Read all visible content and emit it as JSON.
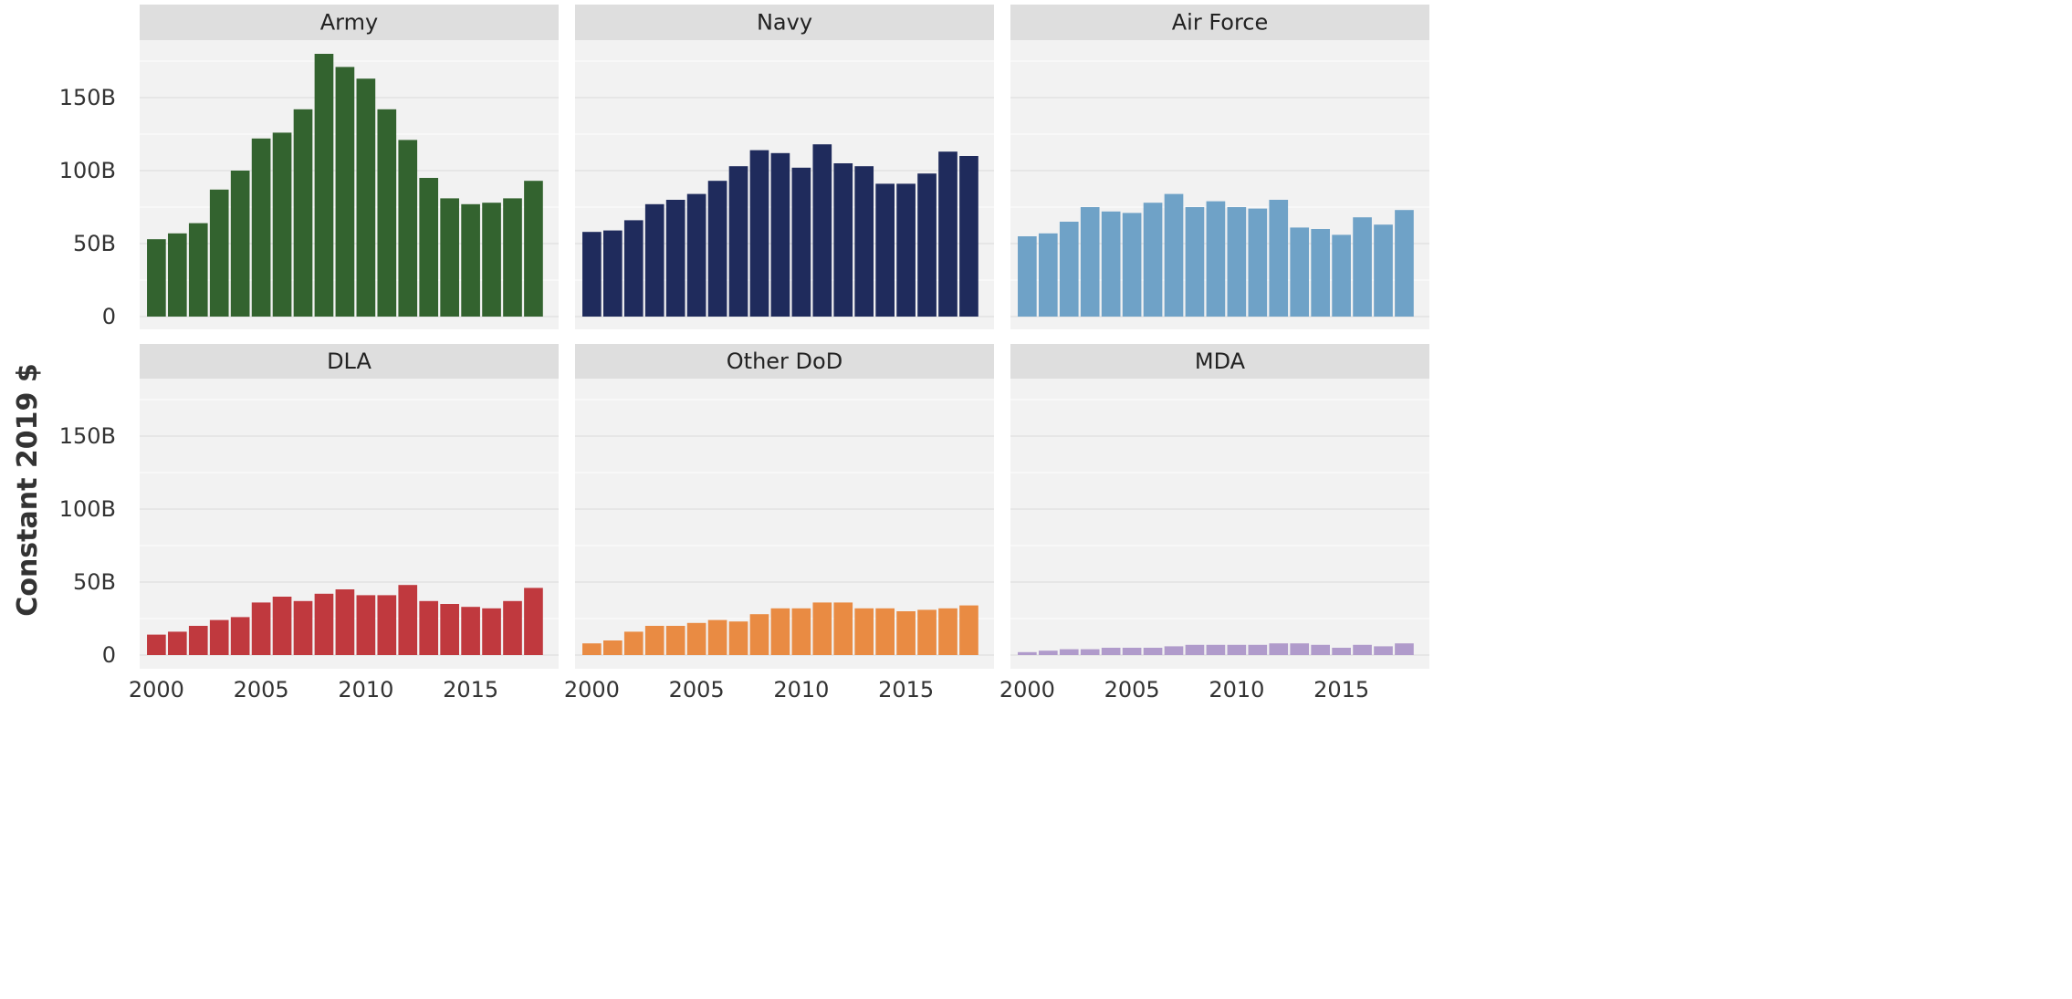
{
  "chart_data": {
    "type": "bar",
    "title": "",
    "xlabel": "",
    "ylabel": "Constant 2019 $",
    "x": [
      2000,
      2001,
      2002,
      2003,
      2004,
      2005,
      2006,
      2007,
      2008,
      2009,
      2010,
      2011,
      2012,
      2013,
      2014,
      2015,
      2016,
      2017,
      2018
    ],
    "xlim": [
      1999.2,
      2019.2
    ],
    "x_ticks": [
      2000,
      2005,
      2010,
      2015
    ],
    "x_tick_labels": [
      "2000",
      "2005",
      "2010",
      "2015"
    ],
    "ylim": [
      0,
      190
    ],
    "y_ticks": [
      0,
      50,
      100,
      150
    ],
    "y_tick_labels": [
      "0",
      "50B",
      "100B",
      "150B"
    ],
    "y_unit": "billions of constant 2019 dollars",
    "grid": true,
    "facets": [
      {
        "name": "Army",
        "color": "#33632f",
        "values": [
          53,
          57,
          64,
          87,
          100,
          122,
          126,
          142,
          180,
          171,
          163,
          142,
          121,
          95,
          81,
          77,
          78,
          81,
          93
        ]
      },
      {
        "name": "Navy",
        "color": "#1f2b5c",
        "values": [
          58,
          59,
          66,
          77,
          80,
          84,
          93,
          103,
          114,
          112,
          102,
          118,
          105,
          103,
          91,
          91,
          98,
          113,
          110
        ]
      },
      {
        "name": "Air Force",
        "color": "#6fa2c7",
        "values": [
          55,
          57,
          65,
          75,
          72,
          71,
          78,
          84,
          75,
          79,
          75,
          74,
          80,
          61,
          60,
          56,
          68,
          63,
          73
        ]
      },
      {
        "name": "DLA",
        "color": "#c0393e",
        "values": [
          14,
          16,
          20,
          24,
          26,
          36,
          40,
          37,
          42,
          45,
          41,
          41,
          48,
          37,
          35,
          33,
          32,
          37,
          46
        ]
      },
      {
        "name": "Other DoD",
        "color": "#e98b43",
        "values": [
          8,
          10,
          16,
          20,
          20,
          22,
          24,
          23,
          28,
          32,
          32,
          36,
          36,
          32,
          32,
          30,
          31,
          32,
          34
        ]
      },
      {
        "name": "MDA",
        "color": "#b09bcb",
        "values": [
          2,
          3,
          4,
          4,
          5,
          5,
          5,
          6,
          7,
          7,
          7,
          7,
          8,
          8,
          7,
          5,
          7,
          6,
          8
        ]
      }
    ]
  }
}
